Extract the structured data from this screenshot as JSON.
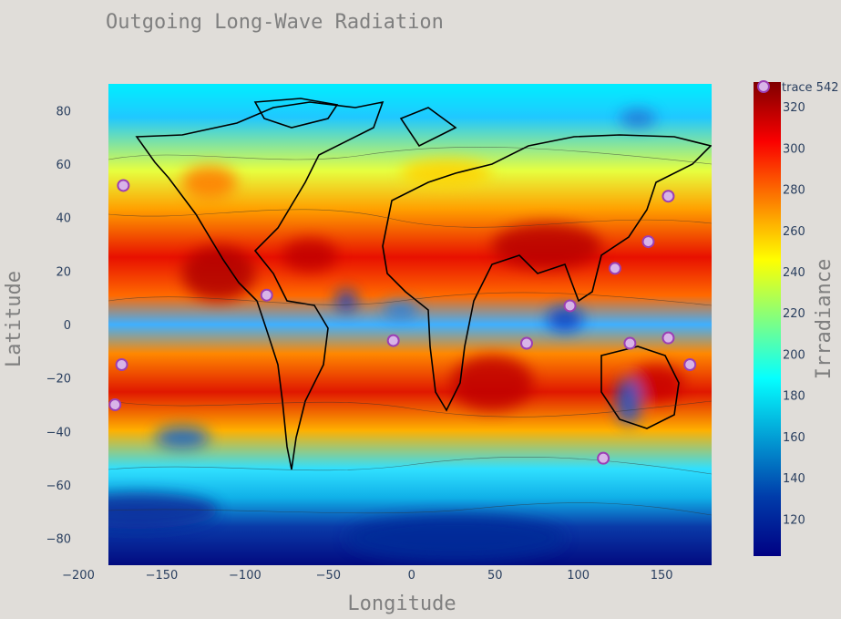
{
  "chart_data": {
    "type": "heatmap",
    "title": "Outgoing Long-Wave Radiation",
    "xlabel": "Longitude",
    "ylabel": "Latitude",
    "xlim": [
      -200,
      180
    ],
    "ylim": [
      -90,
      90
    ],
    "x_ticks": [
      -200,
      -150,
      -100,
      -50,
      0,
      50,
      100,
      150
    ],
    "y_ticks": [
      -80,
      -60,
      -40,
      -20,
      0,
      20,
      40,
      60,
      80
    ],
    "colorbar": {
      "title": "Irradiance",
      "range": [
        102,
        332
      ],
      "ticks": [
        120,
        140,
        160,
        180,
        200,
        220,
        240,
        260,
        280,
        300,
        320
      ],
      "colorscale": "Jet"
    },
    "series": [
      {
        "name": "trace 542",
        "type": "scatter",
        "marker_color": "#d8b4e8",
        "marker_line_color": "#9b3fb5",
        "points": [
          {
            "x": -173,
            "y": 52
          },
          {
            "x": -174,
            "y": -15
          },
          {
            "x": -178,
            "y": -30
          },
          {
            "x": -87,
            "y": 11
          },
          {
            "x": -11,
            "y": -6
          },
          {
            "x": 69,
            "y": -7
          },
          {
            "x": 95,
            "y": 7
          },
          {
            "x": 122,
            "y": 21
          },
          {
            "x": 131,
            "y": -7
          },
          {
            "x": 142,
            "y": 31
          },
          {
            "x": 154,
            "y": 48
          },
          {
            "x": 154,
            "y": -5
          },
          {
            "x": 167,
            "y": -15
          },
          {
            "x": 115,
            "y": -50
          }
        ]
      }
    ],
    "legend_position": "top-right",
    "grid": false
  }
}
